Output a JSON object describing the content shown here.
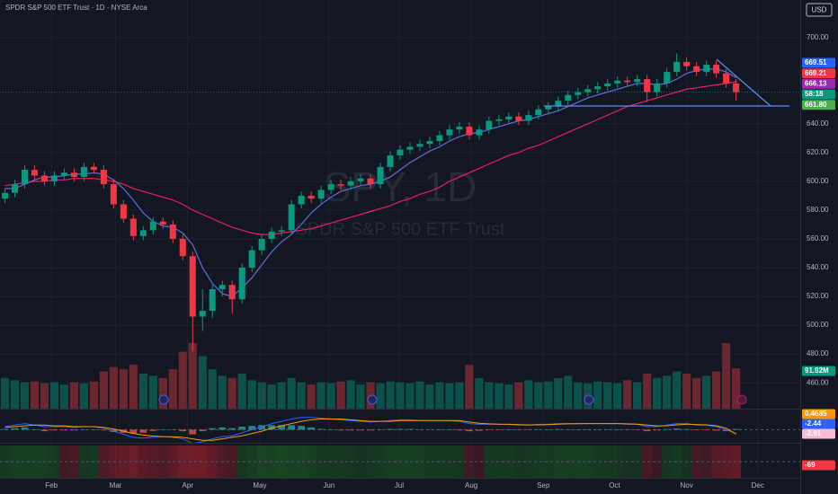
{
  "header": {
    "title": "SPDR S&P 500 ETF Trust · 1D · NYSE Arca",
    "currency": "USD",
    "watermark": "SPY, 1D",
    "watermark_sub": "SPDR S&P 500 ETF Trust"
  },
  "chart_data": {
    "type": "candlestick",
    "up_color": "#089981",
    "down_color": "#f23645",
    "open": [
      588,
      592,
      598,
      608,
      604,
      600,
      604,
      606,
      603,
      610,
      608,
      598,
      584,
      574,
      562,
      566,
      572,
      570,
      560,
      548,
      506,
      510,
      525,
      528,
      518,
      540,
      552,
      560,
      565,
      566,
      584,
      590,
      588,
      594,
      598,
      597,
      600,
      602,
      598,
      610,
      618,
      622,
      624,
      626,
      628,
      632,
      636,
      638,
      632,
      636,
      642,
      643,
      645,
      642,
      646,
      650,
      652,
      656,
      660,
      662,
      664,
      666,
      668,
      670,
      669,
      671,
      662,
      668,
      676,
      683,
      680,
      676,
      681,
      675,
      668
    ],
    "high": [
      595,
      601,
      611,
      611,
      607,
      607,
      609,
      609,
      613,
      613,
      611,
      601,
      587,
      577,
      569,
      575,
      575,
      573,
      563,
      551,
      525,
      528,
      531,
      531,
      543,
      555,
      563,
      568,
      569,
      587,
      593,
      593,
      597,
      601,
      601,
      603,
      605,
      605,
      613,
      621,
      625,
      627,
      629,
      631,
      635,
      639,
      641,
      641,
      639,
      645,
      646,
      648,
      648,
      649,
      653,
      655,
      659,
      663,
      665,
      667,
      669,
      671,
      673,
      673,
      674,
      674,
      671,
      679,
      689,
      686,
      683,
      684,
      684,
      678,
      671
    ],
    "low": [
      585,
      589,
      595,
      601,
      597,
      597,
      601,
      600,
      600,
      605,
      595,
      581,
      571,
      559,
      559,
      563,
      567,
      557,
      545,
      482,
      496,
      505,
      520,
      508,
      515,
      537,
      549,
      557,
      562,
      563,
      581,
      585,
      585,
      591,
      594,
      594,
      597,
      595,
      595,
      607,
      615,
      619,
      621,
      623,
      625,
      629,
      633,
      629,
      629,
      633,
      639,
      640,
      639,
      639,
      643,
      647,
      649,
      653,
      657,
      659,
      661,
      663,
      665,
      666,
      666,
      655,
      659,
      665,
      673,
      677,
      673,
      673,
      672,
      665,
      656
    ],
    "close": [
      592,
      598,
      608,
      604,
      600,
      604,
      606,
      603,
      610,
      608,
      598,
      584,
      574,
      562,
      566,
      572,
      570,
      560,
      548,
      506,
      510,
      525,
      528,
      518,
      540,
      552,
      560,
      565,
      566,
      584,
      590,
      588,
      594,
      598,
      597,
      600,
      602,
      598,
      610,
      618,
      622,
      624,
      626,
      628,
      632,
      636,
      638,
      632,
      636,
      642,
      643,
      645,
      642,
      646,
      650,
      652,
      656,
      660,
      662,
      664,
      666,
      668,
      670,
      669,
      671,
      662,
      668,
      676,
      683,
      680,
      676,
      681,
      675,
      668,
      662
    ],
    "series": [
      {
        "color": "#e91e63",
        "values": [
          597,
          598,
          599,
          600,
          600,
          601,
          601,
          602,
          602,
          602,
          601,
          600,
          598,
          595,
          593,
          591,
          589,
          587,
          584,
          580,
          577,
          574,
          571,
          568,
          566,
          564,
          563,
          563,
          564,
          565,
          566,
          567,
          569,
          571,
          573,
          575,
          577,
          579,
          581,
          583,
          586,
          588,
          591,
          593,
          596,
          600,
          603,
          606,
          609,
          612,
          615,
          618,
          620,
          623,
          625,
          628,
          631,
          634,
          637,
          640,
          643,
          646,
          649,
          652,
          654,
          656,
          658,
          660,
          662,
          664,
          665,
          666,
          667,
          668,
          669.21
        ]
      },
      {
        "color": "#5b6ee1",
        "values": [
          595,
          595,
          598,
          601,
          603,
          603,
          604,
          605,
          605,
          606,
          605,
          601,
          595,
          587,
          578,
          572,
          569,
          568,
          564,
          556,
          540,
          529,
          522,
          520,
          526,
          533,
          542,
          551,
          558,
          563,
          570,
          578,
          584,
          589,
          593,
          595,
          597,
          598,
          600,
          603,
          608,
          613,
          617,
          621,
          624,
          628,
          631,
          633,
          634,
          636,
          638,
          640,
          642,
          643,
          645,
          647,
          649,
          652,
          655,
          658,
          660,
          662,
          664,
          666,
          668,
          668,
          667,
          668,
          671,
          675,
          677,
          678,
          678,
          676,
          672
        ]
      }
    ],
    "ylim": [
      442,
      726
    ],
    "yticks": [
      {
        "value": 460,
        "label": "460.00"
      },
      {
        "value": 480,
        "label": "480.00"
      },
      {
        "value": 500,
        "label": "500.00"
      },
      {
        "value": 520,
        "label": "520.00"
      },
      {
        "value": 540,
        "label": "540.00"
      },
      {
        "value": 560,
        "label": "560.00"
      },
      {
        "value": 580,
        "label": "580.00"
      },
      {
        "value": 600,
        "label": "600.00"
      },
      {
        "value": 620,
        "label": "620.00"
      },
      {
        "value": 640,
        "label": "640.00"
      },
      {
        "value": 700,
        "label": "700.00"
      }
    ],
    "xlim": [
      -0.5,
      80.5
    ],
    "xticks": [
      {
        "value": 4.7,
        "label": "Feb"
      },
      {
        "value": 11.2,
        "label": "Mar"
      },
      {
        "value": 18.5,
        "label": "Apr"
      },
      {
        "value": 25.8,
        "label": "May"
      },
      {
        "value": 32.8,
        "label": "Jun"
      },
      {
        "value": 39.9,
        "label": "Jul"
      },
      {
        "value": 47.2,
        "label": "Aug"
      },
      {
        "value": 54.5,
        "label": "Sep"
      },
      {
        "value": 61.7,
        "label": "Oct"
      },
      {
        "value": 69,
        "label": "Nov"
      },
      {
        "value": 76.2,
        "label": "Dec"
      }
    ],
    "grid": true,
    "volume": {
      "vlim": [
        0,
        250
      ],
      "values": [
        70,
        65,
        60,
        62,
        58,
        60,
        55,
        60,
        58,
        62,
        85,
        95,
        90,
        100,
        80,
        75,
        70,
        90,
        130,
        150,
        120,
        90,
        75,
        70,
        80,
        65,
        60,
        55,
        60,
        70,
        60,
        55,
        60,
        58,
        62,
        65,
        55,
        60,
        58,
        62,
        60,
        58,
        62,
        55,
        60,
        58,
        60,
        100,
        70,
        60,
        58,
        55,
        60,
        65,
        60,
        62,
        70,
        75,
        60,
        58,
        62,
        60,
        58,
        65,
        60,
        80,
        70,
        75,
        85,
        80,
        70,
        75,
        85,
        150,
        91.92
      ],
      "value_labels": {
        "74": "91.92M"
      }
    },
    "macd": {
      "ylim": [
        -8,
        12
      ],
      "macd": [
        2,
        3,
        4,
        3,
        2,
        2,
        2,
        1.5,
        2,
        2,
        1,
        -1,
        -3,
        -5,
        -5.5,
        -5,
        -4.5,
        -5,
        -6,
        -9,
        -8,
        -6,
        -4.5,
        -4,
        -2,
        0,
        2,
        4,
        5.5,
        7,
        8,
        8,
        7.5,
        7,
        6.5,
        6,
        5.5,
        5,
        5.5,
        6,
        6.5,
        6.5,
        6,
        6,
        6,
        6,
        5.5,
        4,
        3.5,
        3.5,
        3.5,
        3.5,
        3,
        3,
        3.5,
        3.5,
        4,
        4,
        4,
        4,
        4,
        4,
        4,
        3.5,
        3.5,
        2,
        2,
        3,
        4,
        4,
        3,
        3,
        2,
        0,
        -2.44
      ],
      "macd_labels": {
        "74": "-2.44"
      },
      "signal": [
        1.5,
        2,
        2.5,
        3,
        3,
        2.5,
        2.5,
        2,
        2,
        2,
        1.5,
        0.5,
        -1,
        -2.5,
        -3.5,
        -4.2,
        -4.5,
        -4.7,
        -5,
        -6,
        -7,
        -7,
        -6,
        -5,
        -4,
        -2.5,
        -1,
        1,
        2.5,
        4,
        5.5,
        6.5,
        7,
        7,
        7,
        6.5,
        6,
        5.5,
        5.5,
        5.5,
        6,
        6,
        6,
        6,
        6,
        6,
        6,
        5,
        4.2,
        3.8,
        3.6,
        3.5,
        3.3,
        3.1,
        3.2,
        3.3,
        3.6,
        3.8,
        3.9,
        4,
        4,
        4,
        4,
        3.8,
        3.6,
        3,
        2.5,
        2.6,
        3.2,
        3.6,
        3.4,
        3.2,
        2.6,
        1,
        -2.91
      ],
      "signal_labels": {
        "74": "-2.91"
      },
      "hist": [
        0.5,
        1,
        1.5,
        0,
        -1,
        -0.5,
        -0.5,
        -0.5,
        0,
        0,
        -0.5,
        -1.5,
        -2,
        -2.5,
        -2,
        -0.8,
        0,
        -0.3,
        -1,
        -3,
        -1,
        1,
        1.5,
        1,
        2,
        2.5,
        3,
        3,
        3,
        3,
        2.5,
        1.5,
        0.5,
        0,
        -0.5,
        -0.5,
        -0.5,
        -0.5,
        0,
        0.5,
        0.5,
        0.5,
        0,
        0,
        0,
        0,
        -0.5,
        -1,
        -0.7,
        -0.3,
        -0.1,
        0,
        -0.3,
        -0.1,
        0.3,
        0.2,
        0.4,
        0.2,
        0.1,
        0,
        0,
        0,
        0,
        -0.3,
        -0.1,
        -1,
        -0.5,
        0.4,
        0.8,
        0.4,
        -0.4,
        -0.2,
        -0.6,
        -1,
        0.4685
      ],
      "hist_labels": {
        "74": "0.4685"
      }
    },
    "oscillator": {
      "ylim": [
        -100,
        100
      ],
      "values": [
        40,
        50,
        50,
        50,
        50,
        40,
        -20,
        -30,
        30,
        40,
        -40,
        -60,
        -70,
        -80,
        -60,
        -50,
        -40,
        -60,
        -80,
        -90,
        -90,
        -70,
        -40,
        -30,
        30,
        50,
        60,
        60,
        70,
        60,
        60,
        50,
        40,
        30,
        40,
        30,
        20,
        30,
        40,
        50,
        50,
        50,
        50,
        40,
        40,
        40,
        30,
        -20,
        -10,
        30,
        40,
        40,
        30,
        30,
        40,
        40,
        50,
        50,
        50,
        50,
        40,
        40,
        30,
        20,
        20,
        -30,
        -10,
        30,
        40,
        20,
        -30,
        -20,
        -50,
        -60,
        -69
      ],
      "value_labels": {
        "74": "-69"
      }
    },
    "price_tags": [
      {
        "label": "669.51",
        "color": "#2962ff"
      },
      {
        "label": "669.21",
        "color": "#f23645"
      },
      {
        "label": "666.13",
        "color": "#9c27b0"
      },
      {
        "label": "58:18",
        "color": "#089981"
      },
      {
        "label": "661.80",
        "color": "#4caf50"
      }
    ]
  }
}
